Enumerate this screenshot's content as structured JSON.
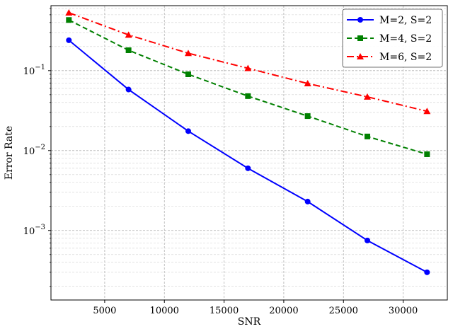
{
  "chart_data": {
    "type": "line",
    "title": "",
    "xlabel": "SNR",
    "ylabel": "Error Rate",
    "xlim": [
      500,
      33700
    ],
    "ylim": [
      0.000135,
      0.65
    ],
    "yscale": "log",
    "grid": true,
    "legend_position": "top-right",
    "x_ticks": [
      5000,
      10000,
      15000,
      20000,
      25000,
      30000
    ],
    "x_tick_labels": [
      "5000",
      "10000",
      "15000",
      "20000",
      "25000",
      "30000"
    ],
    "y_ticks": [
      0.001,
      0.01,
      0.1
    ],
    "y_tick_labels": [
      {
        "base": "10",
        "exp": "−3"
      },
      {
        "base": "10",
        "exp": "−2"
      },
      {
        "base": "10",
        "exp": "−1"
      }
    ],
    "x": [
      2000,
      7000,
      12000,
      17000,
      22000,
      27000,
      32000
    ],
    "series": [
      {
        "name": "M=2, S=2",
        "color": "#0000ff",
        "marker": "circle",
        "line_style": "solid",
        "values": [
          0.24,
          0.058,
          0.0175,
          0.006,
          0.0023,
          0.00075,
          0.0003
        ]
      },
      {
        "name": "M=4, S=2",
        "color": "#008000",
        "marker": "square",
        "line_style": "dashed",
        "values": [
          0.43,
          0.18,
          0.09,
          0.048,
          0.027,
          0.015,
          0.009
        ]
      },
      {
        "name": "M=6, S=2",
        "color": "#ff0000",
        "marker": "triangle",
        "line_style": "dashdot",
        "values": [
          0.53,
          0.28,
          0.165,
          0.107,
          0.069,
          0.047,
          0.031
        ]
      }
    ]
  }
}
